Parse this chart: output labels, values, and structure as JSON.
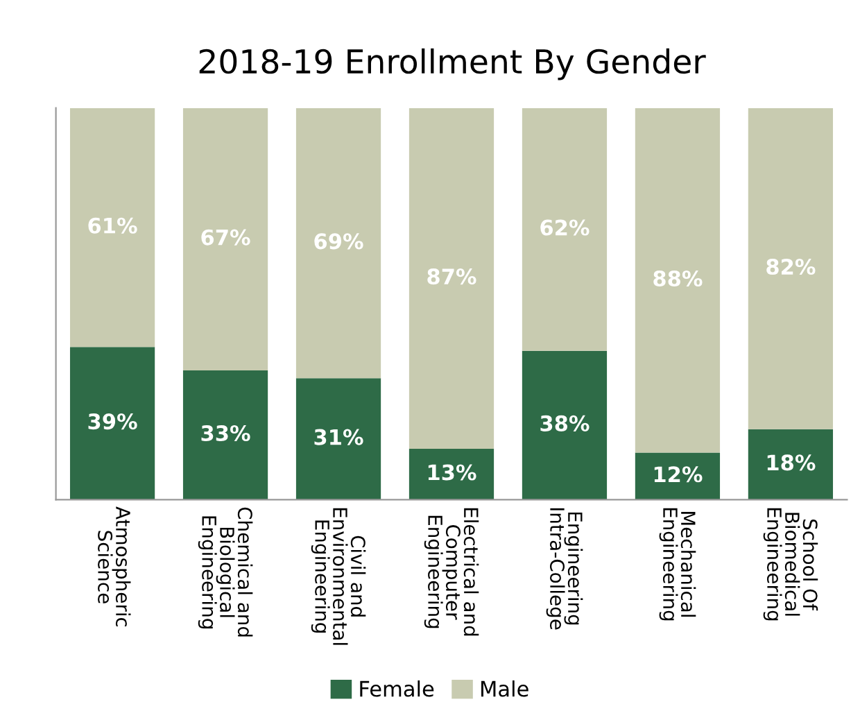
{
  "chart_data": {
    "type": "bar",
    "title": "2018-19 Enrollment By Gender",
    "categories": [
      "Atmospheric\nScience",
      "Chemical and\nBiological\nEngineering",
      "Civil and\nEnvironmental\nEngineering",
      "Electrical and\nComputer\nEngineering",
      "Engineering\nIntra-College",
      "Mechanical\nEngineering",
      "School Of\nBiomedical\nEngineering"
    ],
    "stacked": true,
    "series": [
      {
        "name": "Female",
        "color": "#2e6b47",
        "values": [
          39,
          33,
          31,
          13,
          38,
          12,
          18
        ],
        "value_labels": [
          "39%",
          "33%",
          "31%",
          "13%",
          "38%",
          "12%",
          "18%"
        ]
      },
      {
        "name": "Male",
        "color": "#c8cbb0",
        "values": [
          61,
          67,
          69,
          87,
          62,
          88,
          82
        ],
        "value_labels": [
          "61%",
          "67%",
          "69%",
          "87%",
          "62%",
          "88%",
          "82%"
        ]
      }
    ],
    "legend": "bottom"
  }
}
